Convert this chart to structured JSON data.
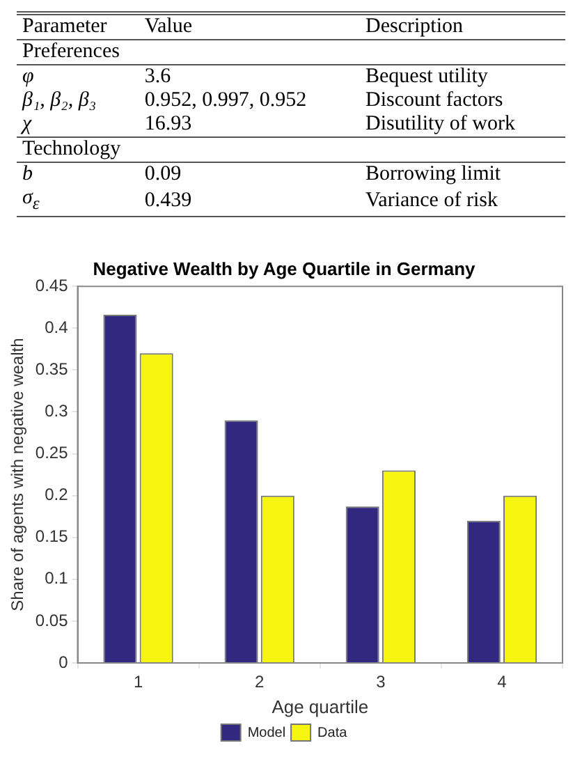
{
  "chart_data": [
    {
      "type": "other",
      "categories": [
        "Parameter",
        "Value",
        "Description"
      ],
      "y_categories": [
        "Preferences",
        "φ",
        "β₁, β₂, β₃",
        "χ",
        "Technology",
        "b",
        "σ$_{ε}$"
      ],
      "cell_labels": [
        [
          null,
          null
        ],
        [
          "3.6",
          "Bequest utility"
        ],
        [
          "0.952, 0.997, 0.952",
          "Discount factors"
        ],
        [
          "16.93",
          "Disutility of work"
        ],
        [
          null,
          null
        ],
        [
          "0.09",
          "Borrowing limit"
        ],
        [
          "0.439",
          "Variance of risk"
        ]
      ]
    },
    {
      "type": "bar",
      "title": "Negative Wealth by Age Quartile in Germany",
      "xlabel": "Age quartile",
      "ylabel": "Share of agents with negative wealth",
      "categories": [
        "1",
        "2",
        "3",
        "4"
      ],
      "series": [
        {
          "name": "Model",
          "color": "#33287f",
          "values": [
            0.416,
            0.29,
            0.187,
            0.17
          ]
        },
        {
          "name": "Data",
          "color": "#f5f50f",
          "values": [
            0.37,
            0.2,
            0.23,
            0.2
          ]
        }
      ],
      "ylim": [
        0,
        0.45
      ],
      "yticks": [
        0,
        0.05,
        0.1,
        0.15,
        0.2,
        0.25,
        0.3,
        0.35,
        0.4,
        0.45
      ],
      "grid": false,
      "legend": "bottom"
    }
  ]
}
